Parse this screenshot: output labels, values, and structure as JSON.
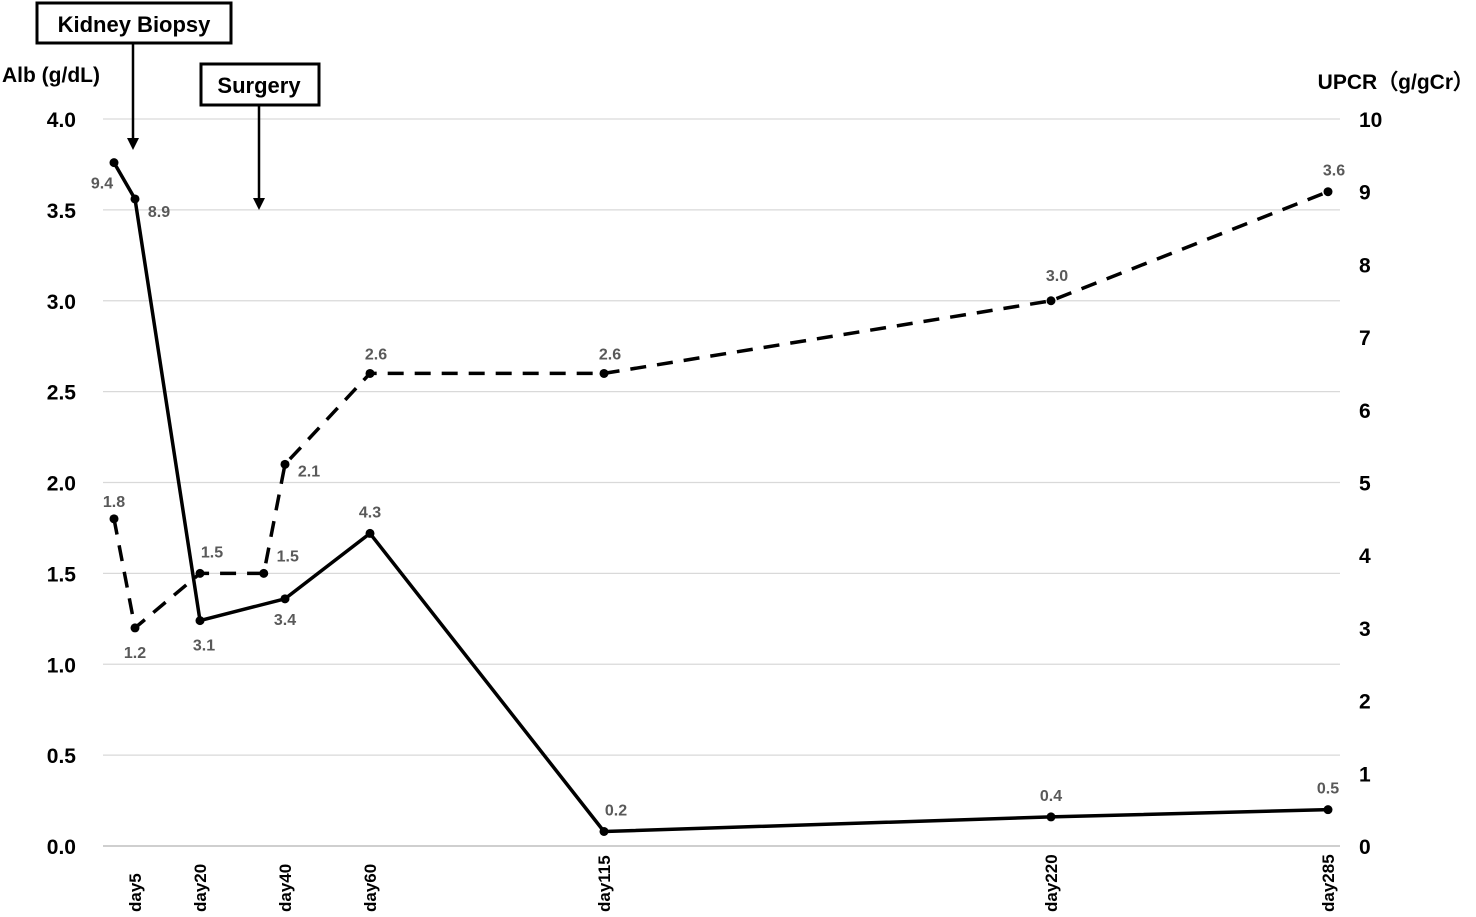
{
  "chart_data": {
    "type": "line",
    "categories": [
      "day5",
      "day20",
      "day40",
      "day60",
      "day115",
      "day220",
      "day285"
    ],
    "y_left": {
      "label": "Alb (g/dL)",
      "ylim": [
        0,
        4
      ],
      "ticks": [
        "0.0",
        "0.5",
        "1.0",
        "1.5",
        "2.0",
        "2.5",
        "3.0",
        "3.5",
        "4.0"
      ]
    },
    "y_right": {
      "label": "UPCR（g/gCr）",
      "ylim": [
        0,
        10
      ],
      "ticks": [
        "0",
        "1",
        "2",
        "3",
        "4",
        "5",
        "6",
        "7",
        "8",
        "9",
        "10"
      ]
    },
    "grid": true,
    "legend": "none",
    "series": [
      {
        "style": "dashed",
        "axis": "left",
        "points": [
          {
            "x": 0,
            "y": 1.8,
            "label": "1.8"
          },
          {
            "x": 5,
            "y": 1.2,
            "label": "1.2"
          },
          {
            "x": 20,
            "y": 1.5,
            "label": "1.5"
          },
          {
            "x": 35,
            "y": 1.5,
            "label": "1.5"
          },
          {
            "x": 40,
            "y": 2.1,
            "label": "2.1"
          },
          {
            "x": 60,
            "y": 2.6,
            "label": "2.6"
          },
          {
            "x": 115,
            "y": 2.6,
            "label": "2.6"
          },
          {
            "x": 220,
            "y": 3.0,
            "label": "3.0"
          },
          {
            "x": 285,
            "y": 3.6,
            "label": "3.6"
          }
        ]
      },
      {
        "style": "solid",
        "axis": "right",
        "points": [
          {
            "x": 0,
            "y": 9.4,
            "label": "9.4"
          },
          {
            "x": 5,
            "y": 8.9,
            "label": "8.9"
          },
          {
            "x": 20,
            "y": 3.1,
            "label": "3.1"
          },
          {
            "x": 40,
            "y": 3.4,
            "label": "3.4"
          },
          {
            "x": 60,
            "y": 4.3,
            "label": "4.3"
          },
          {
            "x": 115,
            "y": 0.2,
            "label": "0.2"
          },
          {
            "x": 220,
            "y": 0.4,
            "label": "0.4"
          },
          {
            "x": 285,
            "y": 0.5,
            "label": "0.5"
          }
        ]
      }
    ],
    "annotations": [
      {
        "text": "Kidney Biopsy",
        "at_x": 5
      },
      {
        "text": "Surgery",
        "at_x": 35
      }
    ]
  }
}
